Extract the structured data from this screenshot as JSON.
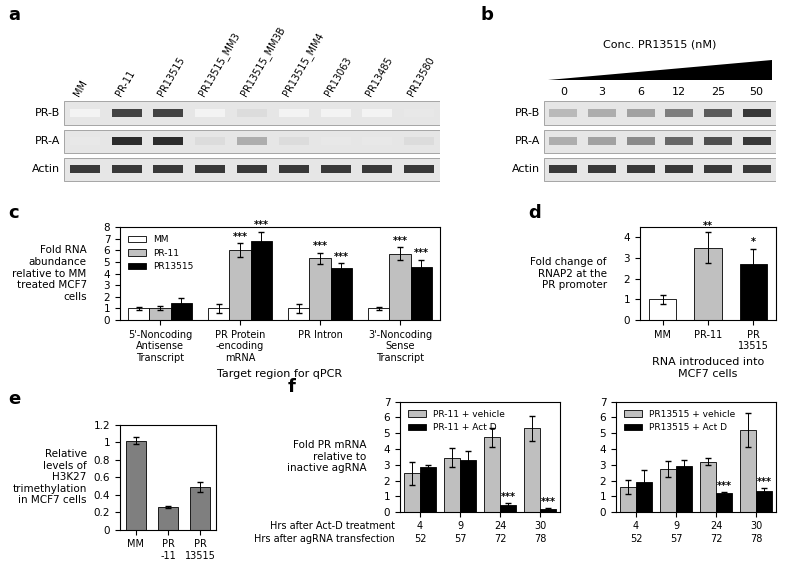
{
  "blots": [
    {
      "panel": "a",
      "lanes": [
        "MM",
        "PR-11",
        "PR13515",
        "PR13515_MM3",
        "PR13515_MM3B",
        "PR13515_MM4",
        "PR13063",
        "PR13485",
        "PR13580"
      ],
      "rows": [
        {
          "label": "PR-B",
          "intensity": [
            0.05,
            0.8,
            0.8,
            0.05,
            0.15,
            0.05,
            0.05,
            0.05,
            0.1
          ]
        },
        {
          "label": "PR-A",
          "intensity": [
            0.1,
            0.9,
            0.9,
            0.15,
            0.35,
            0.15,
            0.1,
            0.1,
            0.15
          ]
        },
        {
          "label": "Actin",
          "intensity": [
            0.85,
            0.85,
            0.85,
            0.85,
            0.85,
            0.85,
            0.85,
            0.85,
            0.85
          ]
        }
      ]
    },
    {
      "panel": "b",
      "title": "Conc. PR13515 (nM)",
      "lanes": [
        0,
        3,
        6,
        12,
        25,
        50
      ],
      "rows": [
        {
          "label": "PR-B",
          "intensity": [
            0.3,
            0.35,
            0.4,
            0.55,
            0.7,
            0.85
          ]
        },
        {
          "label": "PR-A",
          "intensity": [
            0.35,
            0.4,
            0.5,
            0.65,
            0.75,
            0.85
          ]
        },
        {
          "label": "Actin",
          "intensity": [
            0.85,
            0.85,
            0.85,
            0.85,
            0.85,
            0.85
          ]
        }
      ]
    }
  ],
  "chart_data": [
    {
      "panel": "c",
      "type": "bar",
      "y_label": "Fold RNA abundance relative to MM treated MCF7 cells",
      "x_label": "Target region for qPCR",
      "categories": [
        "5'-Noncoding Antisense Transcript",
        "PR Protein -encoding mRNA",
        "PR Intron",
        "3'-Noncoding Sense Transcript"
      ],
      "series": [
        {
          "name": "MM",
          "color": "#ffffff",
          "values": [
            1,
            1,
            1,
            1
          ],
          "errors": [
            0.1,
            0.35,
            0.35,
            0.15
          ],
          "significance": [
            null,
            null,
            null,
            null
          ]
        },
        {
          "name": "PR-11",
          "color": "#c0c0c0",
          "values": [
            1.05,
            6.0,
            5.3,
            5.7
          ],
          "errors": [
            0.15,
            0.6,
            0.5,
            0.55
          ],
          "significance": [
            null,
            "***",
            "***",
            "***"
          ]
        },
        {
          "name": "PR13515",
          "color": "#000000",
          "values": [
            1.5,
            6.8,
            4.5,
            4.6
          ],
          "errors": [
            0.4,
            0.8,
            0.4,
            0.6
          ],
          "significance": [
            null,
            "***",
            "***",
            "***"
          ]
        }
      ],
      "ylim": [
        0,
        8
      ],
      "yticks": [
        0,
        1,
        2,
        3,
        4,
        5,
        6,
        7,
        8
      ],
      "legend": "upper left"
    },
    {
      "panel": "d",
      "type": "bar",
      "y_label": "Fold change of RNAP2 at the PR promoter",
      "x_label": "RNA introduced into MCF7 cells",
      "categories": [
        "MM",
        "PR-11",
        "PR 13515"
      ],
      "values": [
        1,
        3.5,
        2.7
      ],
      "errors": [
        0.2,
        0.75,
        0.75
      ],
      "significance": [
        null,
        "**",
        "*"
      ],
      "colors": [
        "#ffffff",
        "#c0c0c0",
        "#000000"
      ],
      "ylim": [
        0,
        4.5
      ],
      "yticks": [
        0,
        1,
        2,
        3,
        4
      ]
    },
    {
      "panel": "e",
      "type": "bar",
      "y_label": "Relative levels of H3K27 trimethylation in MCF7 cells",
      "categories": [
        "MM",
        "PR -11",
        "PR 13515"
      ],
      "values": [
        1.02,
        0.26,
        0.49
      ],
      "errors": [
        0.04,
        0.01,
        0.06
      ],
      "color": "#7f7f7f",
      "ylim": [
        0,
        1.2
      ],
      "yticks": [
        0,
        0.2,
        0.4,
        0.6,
        0.8,
        1,
        1.2
      ]
    },
    {
      "panel": "f",
      "type": "bar",
      "y_label": "Fold PR mRNA relative to inactive agRNA",
      "x_rows": [
        {
          "label": "Hrs after Act-D treatment",
          "values": [
            4,
            9,
            24,
            30
          ]
        },
        {
          "label": "Hrs after agRNA transfection",
          "values": [
            52,
            57,
            72,
            78
          ]
        }
      ],
      "series": [
        {
          "name": "PR-11 + vehicle",
          "color": "#bfbfbf",
          "values": [
            2.45,
            3.45,
            4.75,
            5.3
          ],
          "errors": [
            0.7,
            0.6,
            0.6,
            0.8
          ],
          "significance": [
            null,
            null,
            null,
            null
          ]
        },
        {
          "name": "PR-11 + Act D",
          "color": "#000000",
          "values": [
            2.85,
            3.3,
            0.45,
            0.2
          ],
          "errors": [
            0.15,
            0.6,
            0.1,
            0.05
          ],
          "significance": [
            null,
            null,
            "***",
            "***"
          ]
        }
      ],
      "ylim": [
        0,
        7
      ],
      "yticks": [
        0,
        1,
        2,
        3,
        4,
        5,
        6,
        7
      ],
      "legend": "upper left"
    },
    {
      "type": "bar",
      "x_rows": [
        {
          "values": [
            4,
            9,
            24,
            30
          ]
        },
        {
          "values": [
            52,
            57,
            72,
            78
          ]
        }
      ],
      "series": [
        {
          "name": "PR13515 + vehicle",
          "color": "#bfbfbf",
          "values": [
            1.6,
            2.75,
            3.2,
            5.2
          ],
          "errors": [
            0.45,
            0.5,
            0.2,
            1.1
          ],
          "significance": [
            null,
            null,
            null,
            null
          ]
        },
        {
          "name": "PR13515 + Act D",
          "color": "#000000",
          "values": [
            1.9,
            2.9,
            1.2,
            1.35
          ],
          "errors": [
            0.8,
            0.4,
            0.05,
            0.15
          ],
          "significance": [
            null,
            null,
            "***",
            "***"
          ]
        }
      ],
      "ylim": [
        0,
        7
      ],
      "yticks": [
        0,
        1,
        2,
        3,
        4,
        5,
        6,
        7
      ],
      "legend": "upper left"
    }
  ]
}
